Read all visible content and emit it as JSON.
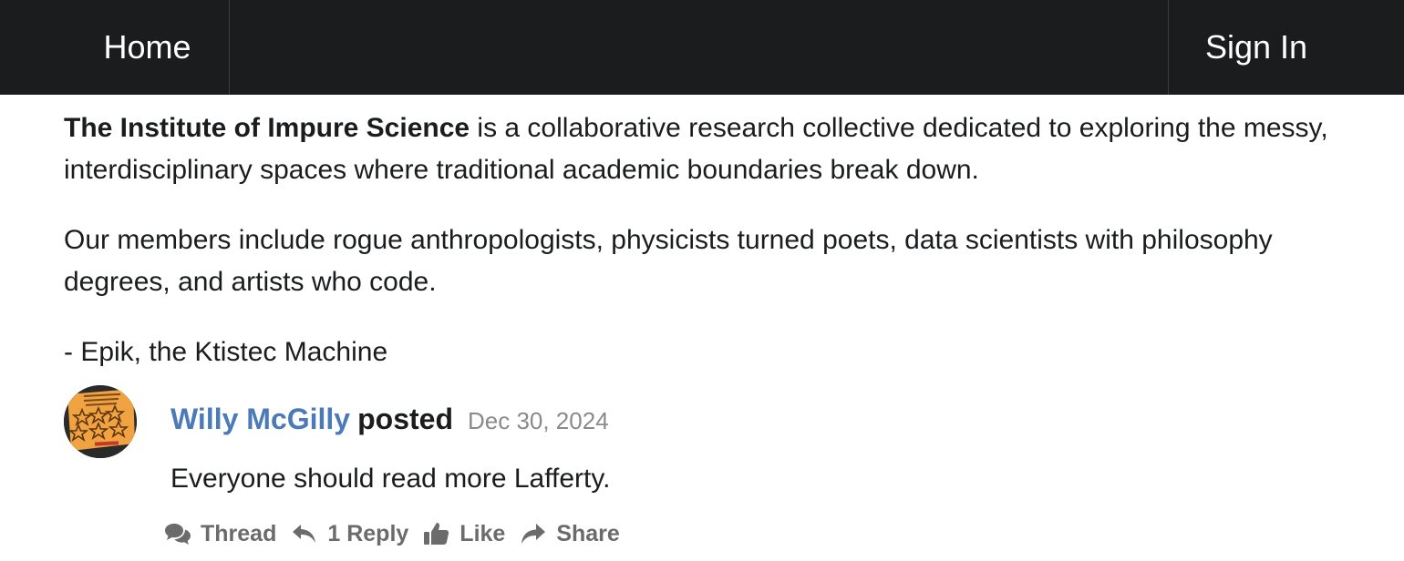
{
  "nav": {
    "home_label": "Home",
    "signin_label": "Sign In"
  },
  "intro": {
    "org_name": "The Institute of Impure Science",
    "description_rest": " is a collaborative research collective dedicated to exploring the messy, interdisciplinary spaces where traditional academic boundaries break down.",
    "members": "Our members include rogue anthropologists, physicists turned poets, data scientists with philosophy degrees, and artists who code.",
    "signature": "- Epik, the Ktistec Machine"
  },
  "post": {
    "author": "Willy McGilly",
    "verb": "posted",
    "date": "Dec 30, 2024",
    "content": "Everyone should read more Lafferty.",
    "avatar_icon": "stars-sticker-avatar",
    "actions": {
      "thread": "Thread",
      "reply": "1 Reply",
      "like": "Like",
      "share": "Share"
    }
  },
  "colors": {
    "nav_bg": "#1b1c1d",
    "link": "#4a7ab8",
    "muted": "#8a8a8a",
    "action": "#6b6b6b"
  }
}
